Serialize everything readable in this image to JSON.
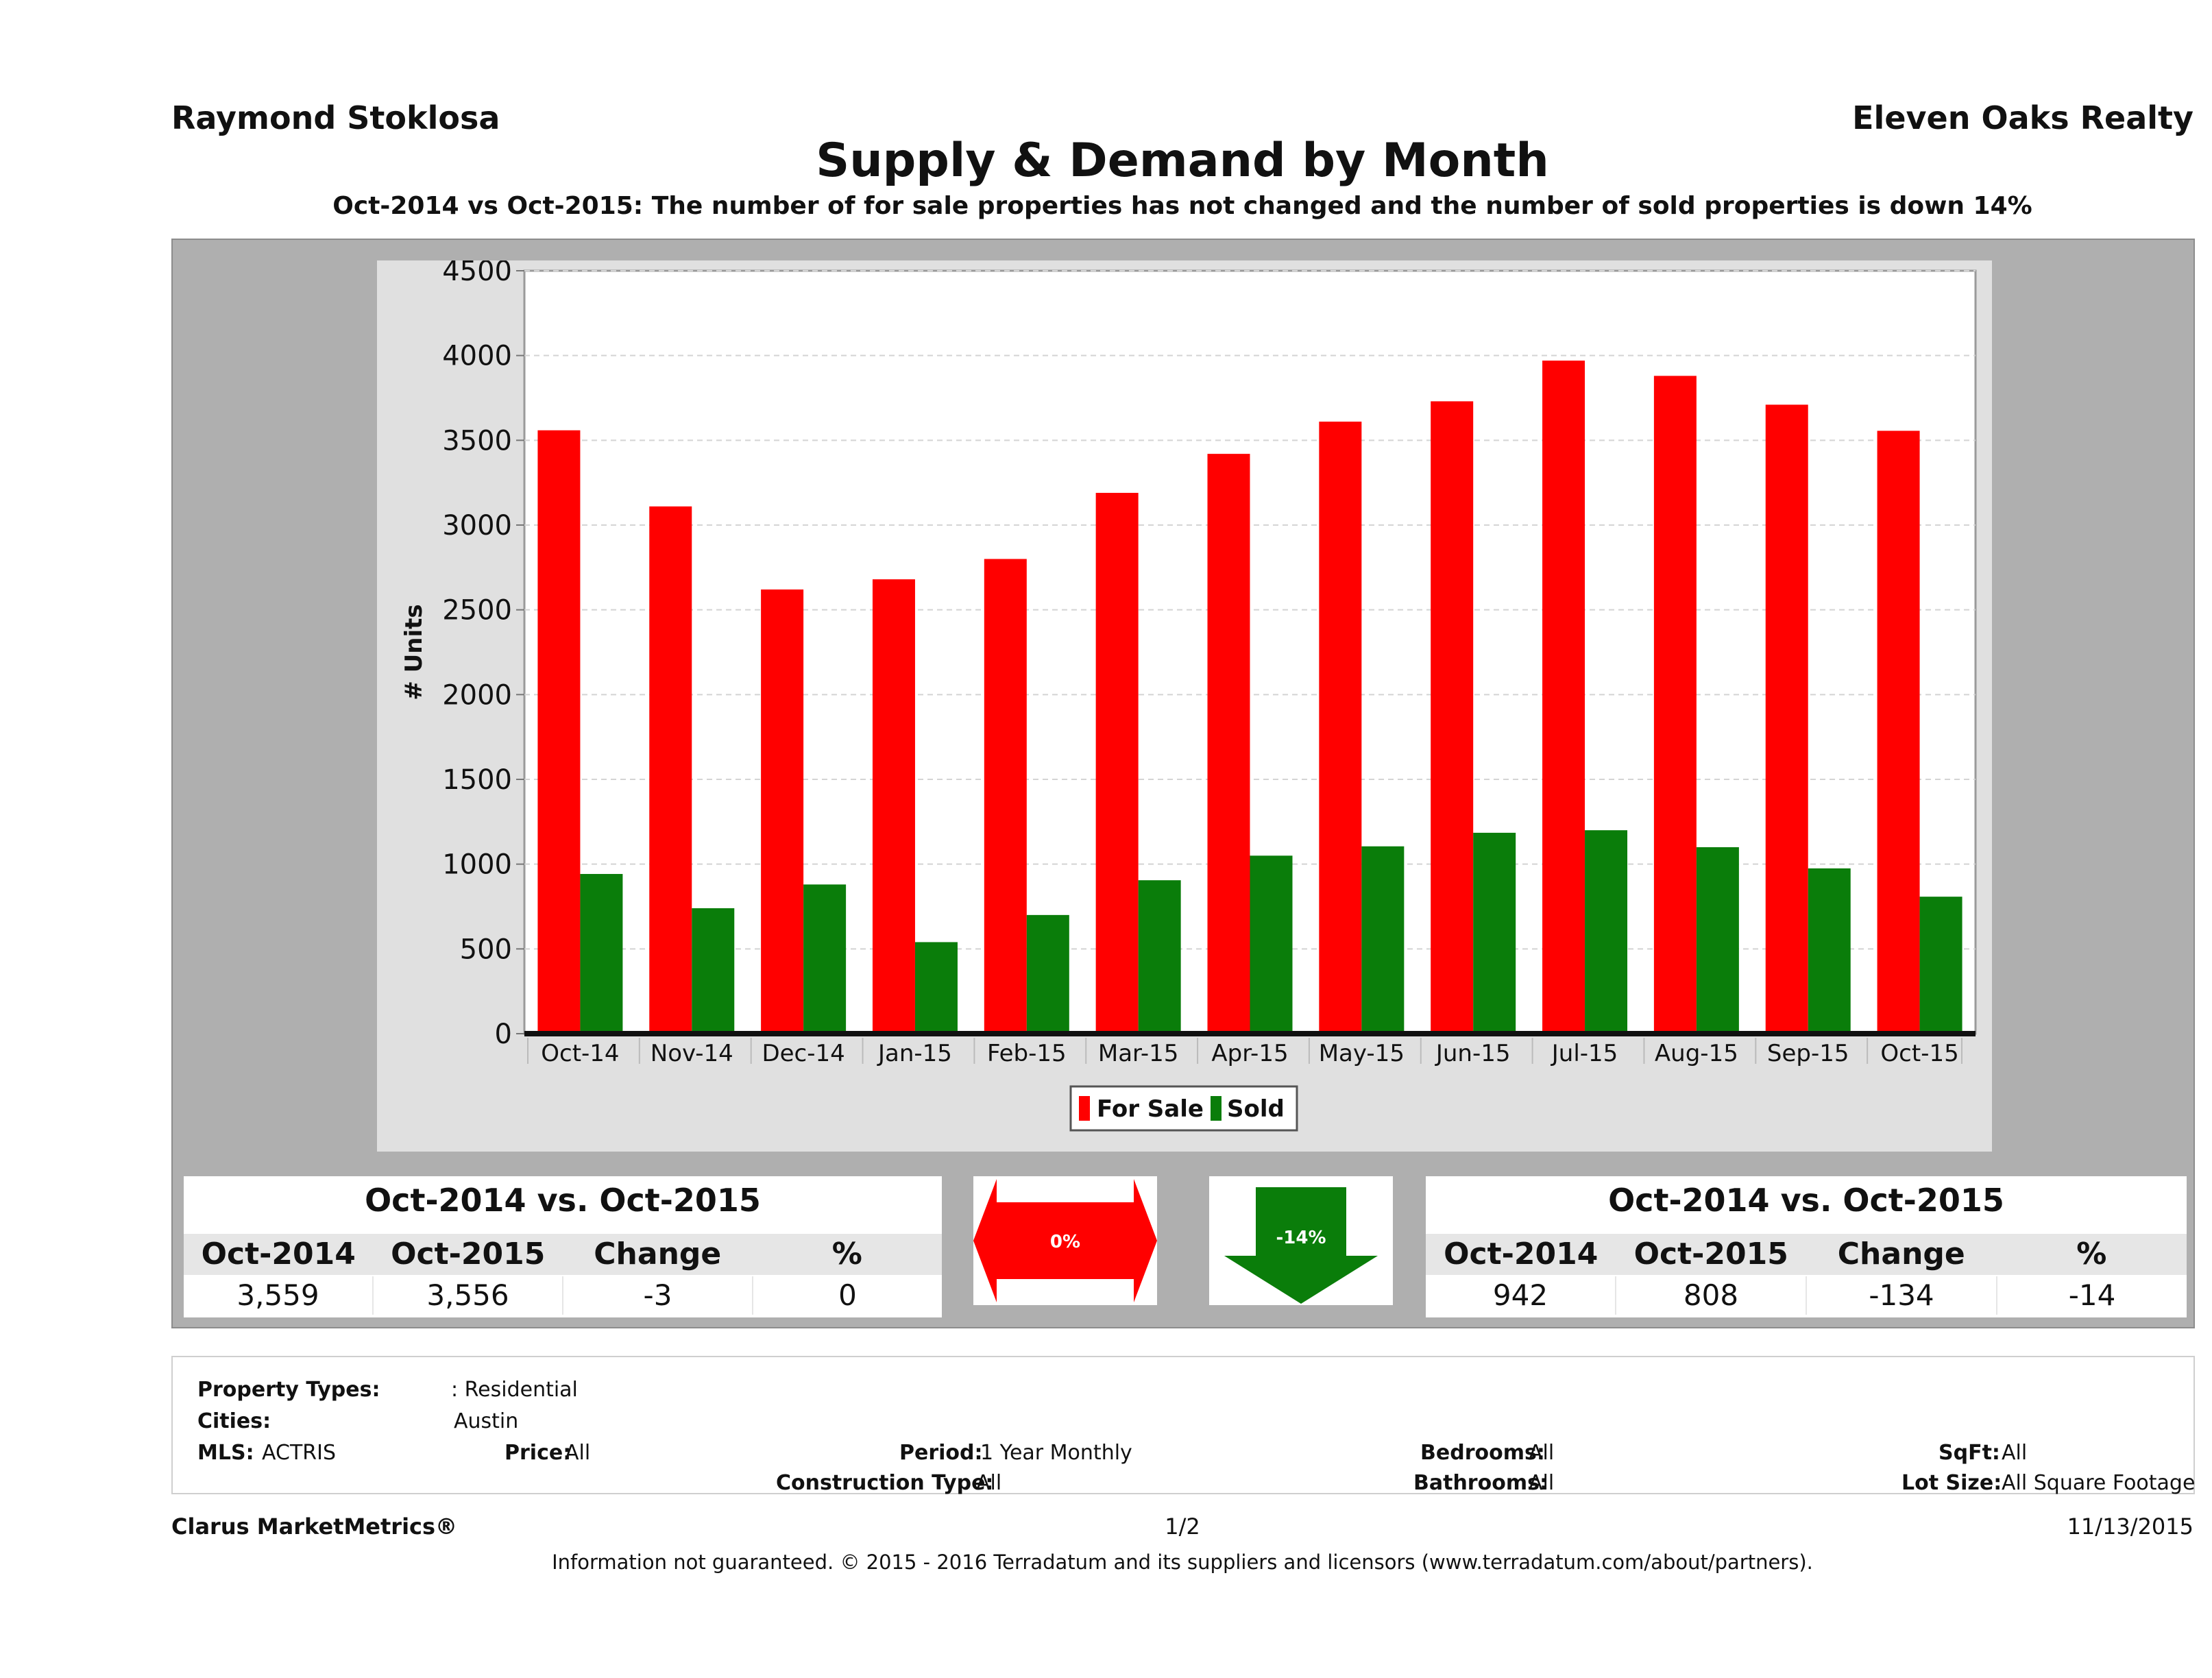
{
  "header": {
    "agent": "Raymond Stoklosa",
    "brokerage": "Eleven Oaks Realty",
    "title": "Supply & Demand by Month",
    "subtitle": "Oct-2014 vs Oct-2015: The number of for sale properties has not changed and the number of sold properties is down 14%"
  },
  "chart_data": {
    "type": "bar",
    "categories": [
      "Oct-14",
      "Nov-14",
      "Dec-14",
      "Jan-15",
      "Feb-15",
      "Mar-15",
      "Apr-15",
      "May-15",
      "Jun-15",
      "Jul-15",
      "Aug-15",
      "Sep-15",
      "Oct-15"
    ],
    "series": [
      {
        "name": "For Sale",
        "color": "#ff0000",
        "values": [
          3559,
          3110,
          2620,
          2680,
          2800,
          3190,
          3420,
          3610,
          3730,
          3970,
          3880,
          3710,
          3556
        ]
      },
      {
        "name": "Sold",
        "color": "#0a7d0a",
        "values": [
          942,
          740,
          880,
          540,
          700,
          905,
          1050,
          1105,
          1185,
          1200,
          1100,
          975,
          808
        ]
      }
    ],
    "ylabel": "# Units",
    "xlabel": "",
    "ylim": [
      0,
      4500
    ],
    "yticks": [
      0,
      500,
      1000,
      1500,
      2000,
      2500,
      3000,
      3500,
      4000,
      4500
    ],
    "grid": true,
    "legend_position": "bottom-center"
  },
  "supply_stats": {
    "title": "Oct-2014 vs. Oct-2015",
    "headers": [
      "Oct-2014",
      "Oct-2015",
      "Change",
      "%"
    ],
    "values": [
      "3,559",
      "3,556",
      "-3",
      "0"
    ],
    "indicator": "0%",
    "indicator_color": "#ff0000"
  },
  "demand_stats": {
    "title": "Oct-2014 vs. Oct-2015",
    "headers": [
      "Oct-2014",
      "Oct-2015",
      "Change",
      "%"
    ],
    "values": [
      "942",
      "808",
      "-134",
      "-14"
    ],
    "indicator": "-14%",
    "indicator_color": "#0a7d0a"
  },
  "filters": {
    "property_types_label": "Property Types:",
    "property_types_value": ": Residential",
    "cities_label": "Cities:",
    "cities_value": "Austin",
    "mls_label": "MLS:",
    "mls_value": "ACTRIS",
    "price_label": "Price:",
    "price_value": "All",
    "period_label": "Period:",
    "period_value": "1 Year Monthly",
    "construction_label": "Construction Type:",
    "construction_value": "All",
    "bedrooms_label": "Bedrooms:",
    "bedrooms_value": "All",
    "bathrooms_label": "Bathrooms:",
    "bathrooms_value": "All",
    "sqft_label": "SqFt:",
    "sqft_value": "All",
    "lotsize_label": "Lot Size:",
    "lotsize_value": "All Square Footage"
  },
  "footer": {
    "brand": "Clarus MarketMetrics®",
    "page": "1/2",
    "date": "11/13/2015",
    "note": "Information not guaranteed. © 2015 - 2016 Terradatum and its suppliers and licensors (www.terradatum.com/about/partners)."
  }
}
